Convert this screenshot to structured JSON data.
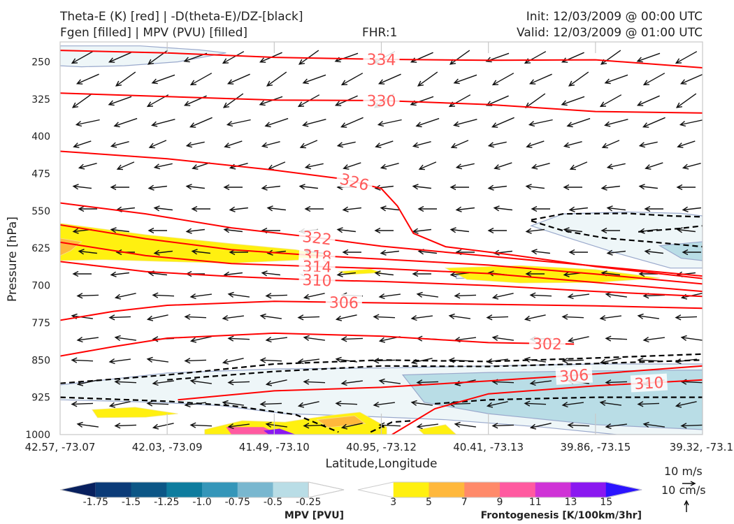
{
  "header": {
    "title_line1": "Theta-E (K) [red] | -D(theta-E)/DZ-[black]",
    "title_line2": "Fgen [filled] | MPV (PVU) [filled]",
    "fhr": "FHR:1",
    "init": "Init: 12/03/2009 @ 00:00 UTC",
    "valid": "Valid: 12/03/2009 @ 01:00 UTC"
  },
  "chart_data": {
    "type": "cross-section",
    "xlabel": "Latitude,Longitude",
    "ylabel": "Pressure [hPa]",
    "x_ticks": [
      "42.57, -73.07",
      "42.03, -73.09",
      "41.49, -73.10",
      "40.95, -73.12",
      "40.41, -73.13",
      "39.86, -73.15",
      "39.32, -73.1"
    ],
    "y_ticks": [
      250,
      325,
      400,
      475,
      550,
      625,
      700,
      775,
      850,
      925,
      1000
    ],
    "ylim": [
      1000,
      210
    ],
    "xlim": [
      0,
      6
    ],
    "theta_e_contours": [
      {
        "level": 334,
        "label": "334",
        "points": [
          [
            0,
            227
          ],
          [
            1,
            232
          ],
          [
            2,
            241
          ],
          [
            3,
            245
          ],
          [
            4,
            247
          ],
          [
            5,
            246
          ],
          [
            6,
            262
          ]
        ],
        "label_at": 3.0
      },
      {
        "level": 330,
        "label": "330",
        "points": [
          [
            0,
            313
          ],
          [
            1,
            320
          ],
          [
            2,
            327
          ],
          [
            3,
            328
          ],
          [
            4,
            336
          ],
          [
            5,
            350
          ],
          [
            6,
            353
          ]
        ],
        "label_at": 3.0
      },
      {
        "level": 326,
        "label": "326",
        "points": [
          [
            0,
            430
          ],
          [
            1,
            445
          ],
          [
            2,
            468
          ],
          [
            2.65,
            486
          ],
          [
            3,
            505
          ],
          [
            3.15,
            540
          ],
          [
            3.3,
            595
          ],
          [
            3.6,
            622
          ],
          [
            4.2,
            638
          ],
          [
            5,
            662
          ],
          [
            6,
            686
          ]
        ],
        "label_at": 2.75
      },
      {
        "level": 322,
        "label": "322",
        "points": [
          [
            0,
            534
          ],
          [
            0.8,
            556
          ],
          [
            1.6,
            584
          ],
          [
            2.4,
            604
          ],
          [
            3,
            621
          ],
          [
            4,
            641
          ],
          [
            5,
            661
          ],
          [
            6,
            681
          ]
        ],
        "label_at": 2.4
      },
      {
        "level": 318,
        "label": "318",
        "points": [
          [
            0,
            578
          ],
          [
            0.8,
            606
          ],
          [
            1.6,
            628
          ],
          [
            2.4,
            640
          ],
          [
            3,
            647
          ],
          [
            4,
            659
          ],
          [
            5,
            677
          ],
          [
            6,
            697
          ]
        ],
        "label_at": 2.4
      },
      {
        "level": 314,
        "label": "314",
        "points": [
          [
            0,
            613
          ],
          [
            0.8,
            640
          ],
          [
            1.6,
            656
          ],
          [
            2.4,
            662
          ],
          [
            3,
            666
          ],
          [
            4,
            676
          ],
          [
            5,
            694
          ],
          [
            6,
            712
          ]
        ],
        "label_at": 2.4
      },
      {
        "level": 310,
        "label": "310",
        "points": [
          [
            0,
            652
          ],
          [
            0.8,
            672
          ],
          [
            1.6,
            682
          ],
          [
            2.4,
            689
          ],
          [
            3,
            692
          ],
          [
            4,
            700
          ],
          [
            5,
            712
          ],
          [
            6,
            722
          ]
        ],
        "label_at": 2.4
      },
      {
        "level": 306,
        "label": "306",
        "points": [
          [
            0,
            770
          ],
          [
            0.5,
            752
          ],
          [
            1,
            740
          ],
          [
            2,
            732
          ],
          [
            3,
            735
          ],
          [
            4,
            738
          ],
          [
            5,
            741
          ],
          [
            6,
            746
          ]
        ],
        "label_at": 2.65
      },
      {
        "level": 302,
        "label": "302",
        "points": [
          [
            0,
            842
          ],
          [
            0.5,
            823
          ],
          [
            1,
            806
          ],
          [
            2,
            796
          ],
          [
            3,
            802
          ],
          [
            4,
            815
          ],
          [
            4.8,
            818
          ]
        ],
        "label_at": 4.55
      },
      {
        "level": 306,
        "label": "306",
        "points": [
          [
            1.1,
            930
          ],
          [
            1.5,
            922
          ],
          [
            2,
            912
          ],
          [
            3,
            905
          ],
          [
            4,
            892
          ],
          [
            5,
            878
          ],
          [
            6,
            862
          ]
        ],
        "label_at": 4.8
      },
      {
        "level": 310,
        "label": "310",
        "points": [
          [
            3.1,
            1000
          ],
          [
            3.5,
            948
          ],
          [
            4,
            918
          ],
          [
            5,
            902
          ],
          [
            6,
            890
          ]
        ],
        "label_at": 5.5
      }
    ],
    "dthetae_dz_contours": [
      [
        [
          0,
          925
        ],
        [
          1,
          933
        ],
        [
          1.6,
          942
        ],
        [
          2.2,
          960
        ],
        [
          2.6,
          995
        ]
      ],
      [
        [
          0,
          897
        ],
        [
          1,
          880
        ],
        [
          2,
          858
        ],
        [
          3,
          850
        ],
        [
          4,
          853
        ],
        [
          5,
          846
        ],
        [
          6,
          838
        ]
      ],
      [
        [
          1,
          890
        ],
        [
          2,
          873
        ],
        [
          3,
          862
        ],
        [
          4,
          863
        ],
        [
          5,
          857
        ],
        [
          6,
          850
        ]
      ],
      [
        [
          3.5,
          938
        ],
        [
          4,
          930
        ],
        [
          5,
          925
        ],
        [
          6,
          925
        ]
      ],
      [
        [
          2.9,
          995
        ],
        [
          3.1,
          975
        ],
        [
          3.3,
          972
        ]
      ],
      [
        [
          4.4,
          568
        ],
        [
          4.7,
          556
        ],
        [
          5.3,
          555
        ],
        [
          5.7,
          560
        ],
        [
          6,
          562
        ]
      ],
      [
        [
          4.4,
          570
        ],
        [
          4.7,
          590
        ],
        [
          5.1,
          605
        ],
        [
          5.5,
          612
        ],
        [
          6,
          622
        ]
      ],
      [
        [
          5.4,
          592
        ],
        [
          5.8,
          585
        ],
        [
          6,
          580
        ]
      ]
    ],
    "mpv_regions_pvu": [
      {
        "value": -0.25,
        "points": [
          [
            0,
            218
          ],
          [
            0.75,
            218
          ],
          [
            1.3,
            226
          ],
          [
            1.55,
            232
          ],
          [
            1.1,
            250
          ],
          [
            0.6,
            258
          ],
          [
            0.2,
            260
          ],
          [
            0,
            258
          ]
        ]
      },
      {
        "value": -0.25,
        "points": [
          [
            4.4,
            580
          ],
          [
            4.7,
            556
          ],
          [
            5.3,
            552
          ],
          [
            5.8,
            555
          ],
          [
            6,
            560
          ],
          [
            6,
            665
          ],
          [
            5.7,
            665
          ],
          [
            5.2,
            635
          ],
          [
            4.8,
            608
          ]
        ]
      },
      {
        "value": -0.5,
        "points": [
          [
            5.6,
            620
          ],
          [
            6,
            612
          ],
          [
            6,
            650
          ],
          [
            5.8,
            645
          ]
        ]
      },
      {
        "value": -0.25,
        "points": [
          [
            0,
            900
          ],
          [
            1,
            876
          ],
          [
            2,
            868
          ],
          [
            3,
            866
          ],
          [
            4,
            862
          ],
          [
            5,
            858
          ],
          [
            6,
            858
          ],
          [
            6,
            1000
          ],
          [
            5.2,
            1000
          ],
          [
            4.5,
            985
          ],
          [
            3.6,
            970
          ],
          [
            2.7,
            962
          ],
          [
            2.1,
            958
          ],
          [
            1.5,
            942
          ],
          [
            0.9,
            935
          ],
          [
            0,
            930
          ]
        ]
      },
      {
        "value": -0.5,
        "points": [
          [
            3.2,
            880
          ],
          [
            4,
            875
          ],
          [
            5,
            872
          ],
          [
            6,
            870
          ],
          [
            6,
            990
          ],
          [
            5,
            980
          ],
          [
            4,
            958
          ],
          [
            3.4,
            935
          ]
        ]
      },
      {
        "value": -0.25,
        "points": [
          [
            3.7,
            680
          ],
          [
            3.85,
            678
          ],
          [
            3.85,
            685
          ],
          [
            3.7,
            686
          ]
        ]
      }
    ],
    "fgen_regions": [
      {
        "value": 3,
        "points": [
          [
            0,
            575
          ],
          [
            0.8,
            598
          ],
          [
            1.6,
            616
          ],
          [
            2.2,
            628
          ],
          [
            2.5,
            640
          ],
          [
            2.3,
            648
          ],
          [
            1.6,
            655
          ],
          [
            1,
            652
          ],
          [
            0.4,
            648
          ],
          [
            0,
            650
          ]
        ]
      },
      {
        "value": 5,
        "points": [
          [
            0,
            605
          ],
          [
            0.2,
            612
          ],
          [
            0.1,
            630
          ],
          [
            0,
            640
          ]
        ]
      },
      {
        "value": 3,
        "points": [
          [
            3.6,
            665
          ],
          [
            4.3,
            660
          ],
          [
            5,
            668
          ],
          [
            5.6,
            685
          ],
          [
            5,
            694
          ],
          [
            4.3,
            695
          ],
          [
            3.8,
            688
          ]
        ]
      },
      {
        "value": 3,
        "points": [
          [
            2.6,
            672
          ],
          [
            2.9,
            667
          ],
          [
            3,
            674
          ],
          [
            2.7,
            678
          ]
        ]
      },
      {
        "value": 3,
        "points": [
          [
            0.3,
            950
          ],
          [
            0.7,
            945
          ],
          [
            1.1,
            958
          ],
          [
            0.8,
            965
          ],
          [
            0.35,
            966
          ]
        ]
      },
      {
        "value": 3,
        "points": [
          [
            1.35,
            990
          ],
          [
            1.7,
            972
          ],
          [
            2.1,
            975
          ],
          [
            2.5,
            962
          ],
          [
            2.8,
            955
          ],
          [
            3.05,
            985
          ],
          [
            3.05,
            1000
          ],
          [
            1.35,
            1000
          ]
        ]
      },
      {
        "value": 3,
        "points": [
          [
            3.35,
            990
          ],
          [
            3.6,
            980
          ],
          [
            3.7,
            1000
          ],
          [
            3.4,
            1000
          ]
        ]
      },
      {
        "value": 5,
        "points": [
          [
            2.4,
            970
          ],
          [
            2.75,
            962
          ],
          [
            2.85,
            978
          ],
          [
            2.5,
            986
          ]
        ]
      },
      {
        "value": 9,
        "points": [
          [
            1.55,
            985
          ],
          [
            1.9,
            985
          ],
          [
            2.05,
            1000
          ],
          [
            1.6,
            1000
          ]
        ]
      },
      {
        "value": 13,
        "points": [
          [
            1.9,
            992
          ],
          [
            2.05,
            988
          ],
          [
            2.2,
            1000
          ],
          [
            1.95,
            1000
          ]
        ]
      }
    ],
    "mpv_colorbar": {
      "title": "MPV [PVU]",
      "ticks": [
        "-1.75",
        "-1.5",
        "-1.25",
        "-1.0",
        "-0.75",
        "-0.5",
        "-0.25"
      ],
      "colors": [
        "#08205e",
        "#0b3b78",
        "#0c5686",
        "#0e7c9e",
        "#3596b9",
        "#79b7cf",
        "#b9dde6",
        "#ffffff"
      ]
    },
    "fgen_colorbar": {
      "title": "Frontogenesis [K/100km/3hr]",
      "ticks": [
        "3",
        "5",
        "7",
        "9",
        "11",
        "13",
        "15"
      ],
      "colors": [
        "#ffffff",
        "#fff010",
        "#ffb83c",
        "#ff8a6a",
        "#ff5aa0",
        "#cf33d6",
        "#8a18f0",
        "#2b14ff"
      ]
    },
    "reference_vectors": {
      "horizontal": "10 m/s",
      "vertical": "10 cm/s"
    }
  }
}
